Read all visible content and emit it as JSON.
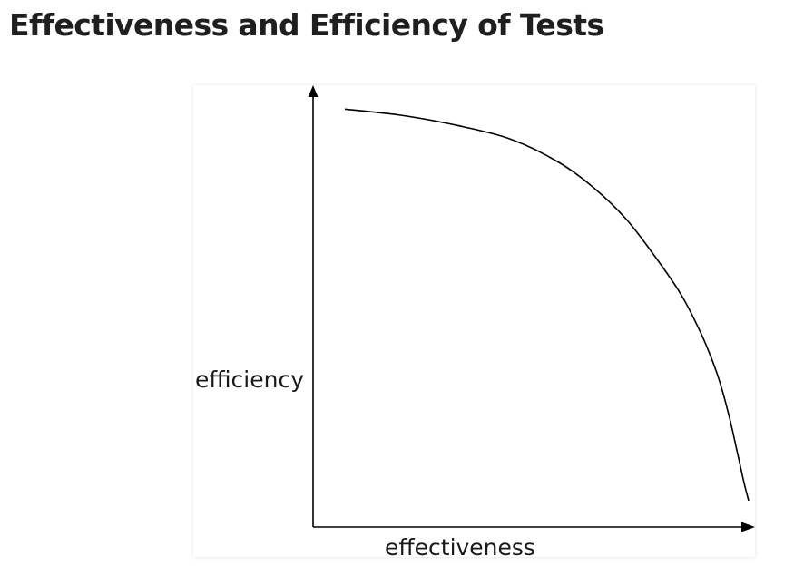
{
  "page": {
    "title": "Effectiveness and Efficiency of Tests"
  },
  "chart_data": {
    "type": "line",
    "title": "",
    "xlabel": "effectiveness",
    "ylabel": "efficiency",
    "xlim": [
      0,
      1
    ],
    "ylim": [
      0,
      1
    ],
    "grid": false,
    "legend": "none",
    "axis_ticks": false,
    "series": [
      {
        "color": "#000000",
        "x": [
          0.07,
          0.2,
          0.33,
          0.44,
          0.54,
          0.62,
          0.69,
          0.75,
          0.81,
          0.855,
          0.89,
          0.915,
          0.935,
          0.95,
          0.96
        ],
        "y": [
          0.95,
          0.935,
          0.91,
          0.88,
          0.83,
          0.77,
          0.7,
          0.62,
          0.53,
          0.44,
          0.35,
          0.26,
          0.17,
          0.1,
          0.06
        ]
      }
    ]
  }
}
